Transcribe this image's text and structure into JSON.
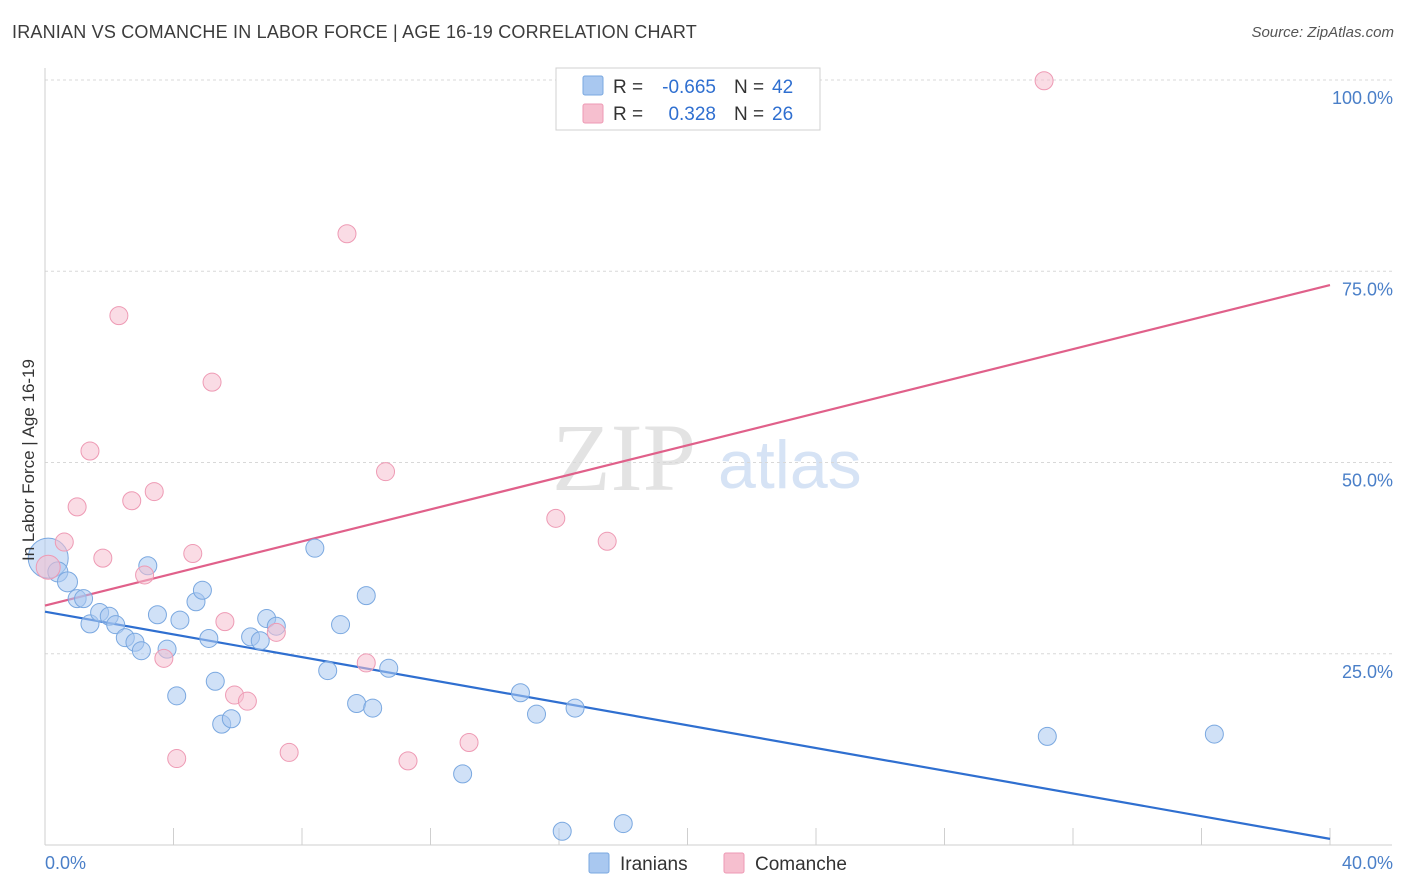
{
  "header": {
    "title": "IRANIAN VS COMANCHE IN LABOR FORCE | AGE 16-19 CORRELATION CHART",
    "source": "Source: ZipAtlas.com"
  },
  "watermark": {
    "zip": "ZIP",
    "atlas": "atlas"
  },
  "colors": {
    "iranians": "#a9c8f0",
    "iranians_stroke": "#7aa8e0",
    "iranians_line": "#2f6fd0",
    "comanche": "#f6bfcf",
    "comanche_stroke": "#ee9ab4",
    "comanche_line": "#e0608a"
  },
  "legend_top": {
    "rows": [
      {
        "r_label": "R =",
        "r_value": "-0.665",
        "n_label": "N =",
        "n_value": "42"
      },
      {
        "r_label": "R =",
        "r_value": "0.328",
        "n_label": "N =",
        "n_value": "26"
      }
    ]
  },
  "legend_bottom": {
    "items": [
      "Iranians",
      "Comanche"
    ]
  },
  "chart_data": {
    "type": "scatter",
    "title": "IRANIAN VS COMANCHE IN LABOR FORCE | AGE 16-19 CORRELATION CHART",
    "xlabel": "",
    "ylabel": "In Labor Force | Age 16-19",
    "xlim": [
      0,
      40
    ],
    "ylim": [
      0,
      100
    ],
    "x_tick_labels": [
      "0.0%",
      "40.0%"
    ],
    "y_ticks": [
      25,
      50,
      75,
      100
    ],
    "y_tick_labels": [
      "25.0%",
      "50.0%",
      "75.0%",
      "100.0%"
    ],
    "series": [
      {
        "name": "Iranians",
        "r": -0.665,
        "n": 42,
        "trend": {
          "x": [
            0,
            40
          ],
          "y": [
            30.5,
            0.8
          ]
        },
        "points": [
          [
            0.1,
            37.5,
            20
          ],
          [
            0.4,
            35.7,
            10
          ],
          [
            0.7,
            34.4,
            10
          ],
          [
            1.0,
            32.2,
            9
          ],
          [
            1.2,
            32.2,
            9
          ],
          [
            1.4,
            28.9,
            9
          ],
          [
            1.7,
            30.4,
            9
          ],
          [
            2.0,
            29.9,
            9
          ],
          [
            2.2,
            28.8,
            9
          ],
          [
            2.5,
            27.1,
            9
          ],
          [
            2.8,
            26.5,
            9
          ],
          [
            3.0,
            25.4,
            9
          ],
          [
            3.2,
            36.5,
            9
          ],
          [
            3.5,
            30.1,
            9
          ],
          [
            3.8,
            25.6,
            9
          ],
          [
            4.1,
            19.5,
            9
          ],
          [
            4.2,
            29.4,
            9
          ],
          [
            4.7,
            31.8,
            9
          ],
          [
            4.9,
            33.3,
            9
          ],
          [
            5.1,
            27.0,
            9
          ],
          [
            5.3,
            21.4,
            9
          ],
          [
            5.5,
            15.8,
            9
          ],
          [
            5.8,
            16.5,
            9
          ],
          [
            6.4,
            27.2,
            9
          ],
          [
            6.7,
            26.7,
            9
          ],
          [
            6.9,
            29.6,
            9
          ],
          [
            7.2,
            28.6,
            9
          ],
          [
            8.4,
            38.8,
            9
          ],
          [
            8.8,
            22.8,
            9
          ],
          [
            9.2,
            28.8,
            9
          ],
          [
            9.7,
            18.5,
            9
          ],
          [
            10.0,
            32.6,
            9
          ],
          [
            10.2,
            17.9,
            9
          ],
          [
            10.7,
            23.1,
            9
          ],
          [
            13.0,
            9.3,
            9
          ],
          [
            14.8,
            19.9,
            9
          ],
          [
            15.3,
            17.1,
            9
          ],
          [
            16.1,
            1.8,
            9
          ],
          [
            16.5,
            17.9,
            9
          ],
          [
            18.0,
            2.8,
            9
          ],
          [
            31.2,
            14.2,
            9
          ],
          [
            36.4,
            14.5,
            9
          ]
        ]
      },
      {
        "name": "Comanche",
        "r": 0.328,
        "n": 26,
        "trend": {
          "x": [
            0,
            40
          ],
          "y": [
            31.3,
            73.2
          ]
        },
        "points": [
          [
            0.1,
            36.3,
            12
          ],
          [
            0.6,
            39.6,
            9
          ],
          [
            1.0,
            44.2,
            9
          ],
          [
            1.4,
            51.5,
            9
          ],
          [
            1.8,
            37.5,
            9
          ],
          [
            2.3,
            69.2,
            9
          ],
          [
            2.7,
            45.0,
            9
          ],
          [
            3.1,
            35.3,
            9
          ],
          [
            3.4,
            46.2,
            9
          ],
          [
            3.7,
            24.4,
            9
          ],
          [
            4.1,
            11.3,
            9
          ],
          [
            4.6,
            38.1,
            9
          ],
          [
            5.2,
            60.5,
            9
          ],
          [
            5.6,
            29.2,
            9
          ],
          [
            5.9,
            19.6,
            9
          ],
          [
            6.3,
            18.8,
            9
          ],
          [
            7.2,
            27.8,
            9
          ],
          [
            7.6,
            12.1,
            9
          ],
          [
            9.4,
            79.9,
            9
          ],
          [
            10.0,
            23.8,
            9
          ],
          [
            10.6,
            48.8,
            9
          ],
          [
            11.3,
            11.0,
            9
          ],
          [
            13.2,
            13.4,
            9
          ],
          [
            15.9,
            42.7,
            9
          ],
          [
            17.5,
            39.7,
            9
          ],
          [
            31.1,
            99.9,
            9
          ]
        ]
      }
    ]
  }
}
